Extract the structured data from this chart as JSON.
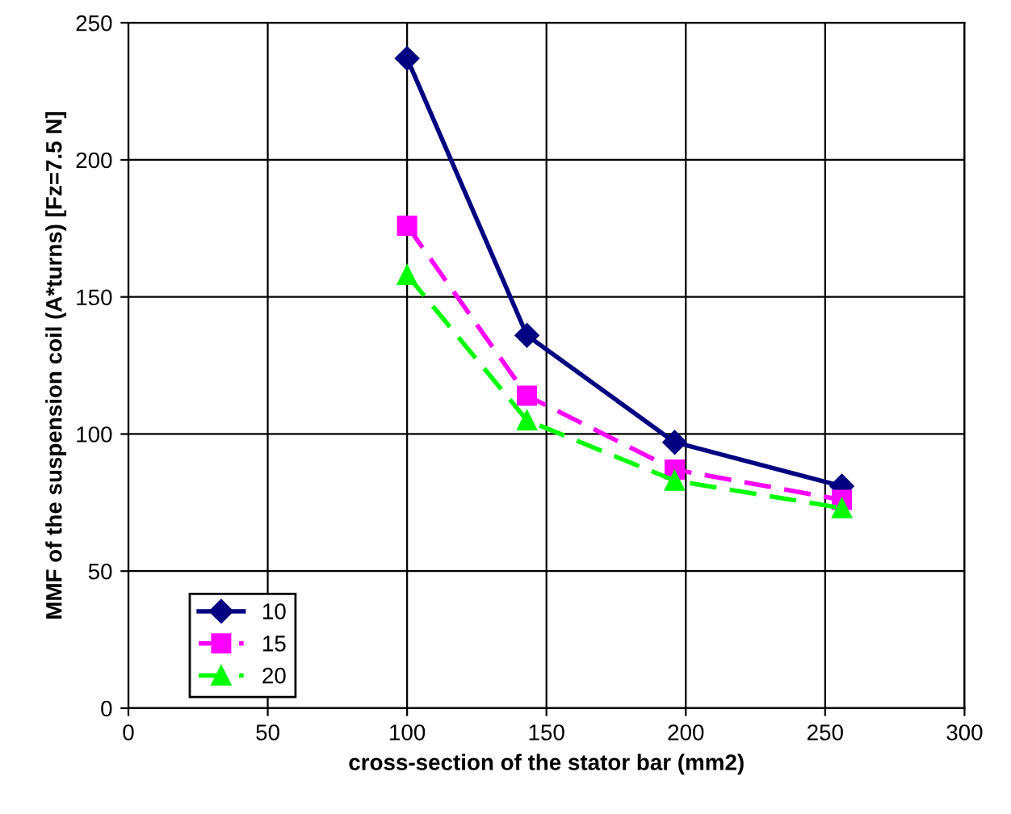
{
  "chart_data": {
    "type": "line",
    "xlabel": "cross-section of the stator bar (mm2)",
    "ylabel": "MMF of the suspension coil (A*turns) [Fz=7.5 N]",
    "x": [
      100,
      143,
      196,
      256
    ],
    "series": [
      {
        "name": "10",
        "color": "#000080",
        "values": [
          237,
          136,
          97,
          81
        ],
        "marker": "diamond",
        "line_style": "solid"
      },
      {
        "name": "15",
        "color": "#ff00ff",
        "values": [
          176,
          114,
          87,
          76
        ],
        "marker": "square",
        "line_style": "dashed"
      },
      {
        "name": "20",
        "color": "#00ff00",
        "values": [
          158,
          105,
          83,
          73
        ],
        "marker": "triangle",
        "line_style": "dashed"
      }
    ],
    "xlim": [
      0,
      300
    ],
    "xticks": [
      0,
      50,
      100,
      150,
      200,
      250,
      300
    ],
    "ylim": [
      0,
      250
    ],
    "yticks": [
      0,
      50,
      100,
      150,
      200,
      250
    ],
    "grid": true,
    "legend": "bottom left"
  }
}
